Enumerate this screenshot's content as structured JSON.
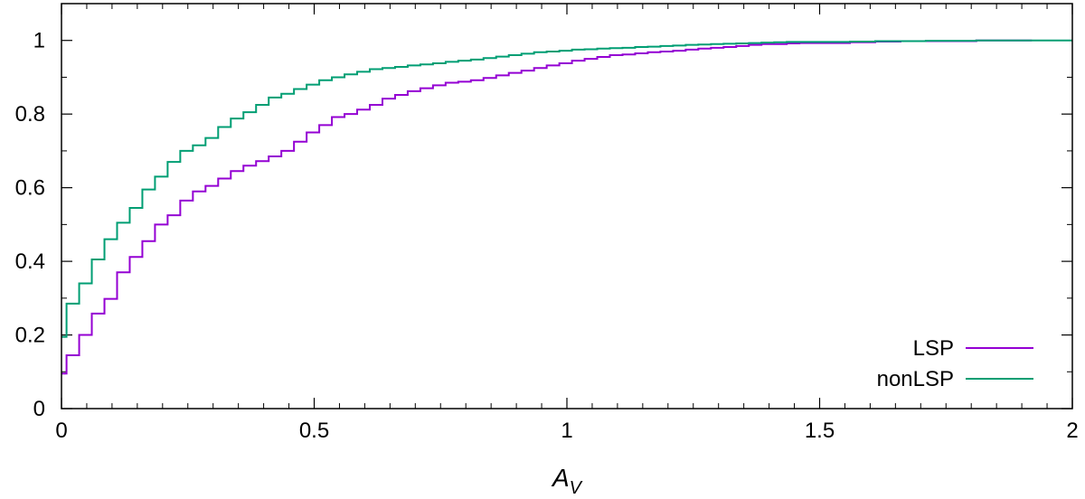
{
  "chart_data": {
    "type": "line",
    "step": true,
    "xlabel": "A",
    "xlabel_subscript": "V",
    "ylabel": "",
    "xlim": [
      0,
      2
    ],
    "ylim": [
      0,
      1.1
    ],
    "xticks": [
      0,
      0.5,
      1,
      1.5,
      2
    ],
    "xtick_labels": [
      "0",
      "0.5",
      "1",
      "1.5",
      "2"
    ],
    "yticks": [
      0,
      0.2,
      0.4,
      0.6,
      0.8,
      1
    ],
    "ytick_labels": [
      "0",
      "0.2",
      "0.4",
      "0.6",
      "0.8",
      "1"
    ],
    "grid": false,
    "legend_position": "bottom-right",
    "series": [
      {
        "name": "LSP",
        "color": "#9400d3",
        "x": [
          0,
          0.01,
          0.035,
          0.06,
          0.085,
          0.11,
          0.135,
          0.16,
          0.185,
          0.21,
          0.235,
          0.26,
          0.285,
          0.31,
          0.335,
          0.36,
          0.385,
          0.41,
          0.435,
          0.46,
          0.485,
          0.51,
          0.535,
          0.56,
          0.585,
          0.61,
          0.635,
          0.66,
          0.685,
          0.71,
          0.735,
          0.76,
          0.785,
          0.81,
          0.835,
          0.86,
          0.885,
          0.91,
          0.935,
          0.96,
          0.985,
          1.01,
          1.035,
          1.06,
          1.085,
          1.11,
          1.135,
          1.16,
          1.185,
          1.21,
          1.235,
          1.26,
          1.285,
          1.31,
          1.335,
          1.36,
          1.385,
          1.41,
          1.435,
          1.46,
          1.56,
          1.61,
          1.66,
          1.71,
          1.81,
          1.92
        ],
        "y": [
          0.095,
          0.145,
          0.2,
          0.258,
          0.298,
          0.37,
          0.412,
          0.455,
          0.5,
          0.525,
          0.565,
          0.59,
          0.605,
          0.625,
          0.645,
          0.66,
          0.672,
          0.685,
          0.7,
          0.725,
          0.75,
          0.77,
          0.792,
          0.8,
          0.812,
          0.825,
          0.842,
          0.852,
          0.862,
          0.87,
          0.878,
          0.885,
          0.888,
          0.892,
          0.898,
          0.905,
          0.912,
          0.918,
          0.925,
          0.932,
          0.938,
          0.945,
          0.95,
          0.955,
          0.96,
          0.962,
          0.965,
          0.968,
          0.97,
          0.972,
          0.975,
          0.978,
          0.98,
          0.982,
          0.985,
          0.988,
          0.99,
          0.99,
          0.992,
          0.993,
          0.995,
          0.997,
          0.998,
          0.998,
          1.0,
          1.0
        ]
      },
      {
        "name": "nonLSP",
        "color": "#009e73",
        "x": [
          0,
          0.01,
          0.035,
          0.06,
          0.085,
          0.11,
          0.135,
          0.16,
          0.185,
          0.21,
          0.235,
          0.26,
          0.285,
          0.31,
          0.335,
          0.36,
          0.385,
          0.41,
          0.435,
          0.46,
          0.485,
          0.51,
          0.535,
          0.56,
          0.585,
          0.61,
          0.635,
          0.66,
          0.685,
          0.71,
          0.735,
          0.76,
          0.785,
          0.81,
          0.835,
          0.86,
          0.885,
          0.91,
          0.935,
          0.96,
          0.985,
          1.01,
          1.035,
          1.06,
          1.085,
          1.11,
          1.135,
          1.16,
          1.185,
          1.21,
          1.235,
          1.26,
          1.285,
          1.31,
          1.335,
          1.36,
          1.385,
          1.41,
          1.435,
          1.46,
          1.56,
          1.61,
          1.66,
          1.71,
          1.81,
          2.0
        ],
        "y": [
          0.195,
          0.285,
          0.34,
          0.405,
          0.46,
          0.505,
          0.545,
          0.595,
          0.63,
          0.67,
          0.7,
          0.715,
          0.735,
          0.765,
          0.788,
          0.805,
          0.825,
          0.845,
          0.855,
          0.868,
          0.88,
          0.892,
          0.9,
          0.908,
          0.915,
          0.922,
          0.925,
          0.928,
          0.932,
          0.935,
          0.938,
          0.942,
          0.945,
          0.948,
          0.952,
          0.956,
          0.96,
          0.964,
          0.968,
          0.97,
          0.972,
          0.975,
          0.976,
          0.978,
          0.979,
          0.98,
          0.982,
          0.983,
          0.985,
          0.986,
          0.988,
          0.989,
          0.99,
          0.991,
          0.992,
          0.993,
          0.994,
          0.995,
          0.996,
          0.996,
          0.997,
          0.998,
          0.998,
          0.999,
          1.0,
          1.0
        ]
      }
    ]
  }
}
